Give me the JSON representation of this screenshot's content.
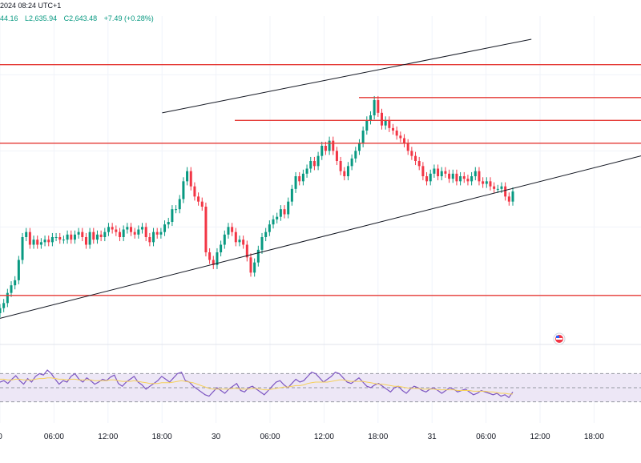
{
  "header": {
    "date_fragment": "2024 08:24 UTC+1",
    "ohlc_fragment": "44.16",
    "low_label": "L2,635.94",
    "close_label": "C2,643.48",
    "change_label": "+7.49 (+0.28%)"
  },
  "colors": {
    "up": "#089981",
    "down": "#f23645",
    "level_line": "#e53935",
    "trend_line": "#131722",
    "rsi_line": "#7e57c2",
    "rsi_ma": "#f5d05b",
    "rsi_band": "#ede7f6"
  },
  "icons": {
    "event_marker": "us-flag-icon"
  },
  "chart_data": [
    {
      "type": "candlestick",
      "title": "",
      "xlabel": "",
      "ylabel": "",
      "x_ticks": [
        "0",
        "06:00",
        "12:00",
        "18:00",
        "30",
        "06:00",
        "12:00",
        "18:00",
        "31",
        "06:00",
        "12:00",
        "18:00"
      ],
      "ylim": [
        0,
        100
      ],
      "grid": true,
      "candles_close": [
        8,
        10,
        14,
        17,
        19,
        27,
        36,
        38,
        33,
        35,
        33,
        34,
        35,
        34,
        36,
        36,
        35,
        35,
        37,
        35,
        37,
        38,
        36,
        33,
        38,
        35,
        37,
        36,
        38,
        40,
        39,
        38,
        36,
        39,
        40,
        38,
        37,
        39,
        40,
        36,
        34,
        38,
        37,
        38,
        41,
        42,
        47,
        47,
        51,
        58,
        62,
        56,
        52,
        50,
        48,
        30,
        27,
        25,
        30,
        33,
        37,
        40,
        38,
        34,
        35,
        33,
        28,
        22,
        26,
        31,
        36,
        38,
        41,
        43,
        44,
        47,
        45,
        50,
        55,
        60,
        58,
        61,
        63,
        66,
        64,
        68,
        72,
        70,
        74,
        70,
        66,
        62,
        60,
        64,
        67,
        70,
        73,
        78,
        82,
        84,
        90,
        85,
        80,
        82,
        79,
        78,
        76,
        75,
        73,
        70,
        68,
        66,
        64,
        60,
        58,
        61,
        63,
        60,
        62,
        61,
        59,
        61,
        58,
        60,
        59,
        58,
        60,
        62,
        58,
        57,
        58,
        56,
        55,
        55,
        56,
        52,
        50,
        54
      ],
      "levels": [
        73,
        82,
        91,
        104
      ],
      "channel": {
        "upper": [
          [
            0.253,
            85
          ],
          [
            0.829,
            114
          ]
        ],
        "lower": [
          [
            0.0,
            4
          ],
          [
            1.0,
            68
          ]
        ]
      }
    },
    {
      "type": "line",
      "title": "",
      "xlabel": "",
      "ylabel": "",
      "ylim": [
        0,
        100
      ],
      "bands": [
        30,
        50,
        70
      ],
      "series": [
        {
          "values": [
            58,
            60,
            56,
            62,
            67,
            60,
            55,
            63,
            58,
            66,
            70,
            68,
            75,
            70,
            62,
            55,
            60,
            58,
            66,
            70,
            62,
            58,
            64,
            60,
            55,
            58,
            62,
            60,
            65,
            68,
            56,
            52,
            58,
            62,
            66,
            58,
            54,
            48,
            52,
            56,
            60,
            66,
            62,
            58,
            64,
            70,
            72,
            60,
            58,
            52,
            48,
            44,
            40,
            38,
            44,
            50,
            46,
            42,
            48,
            52,
            56,
            46,
            44,
            50,
            52,
            48,
            44,
            40,
            46,
            52,
            58,
            60,
            54,
            50,
            56,
            62,
            58,
            60,
            66,
            72,
            70,
            64,
            58,
            62,
            66,
            72,
            70,
            64,
            58,
            56,
            60,
            64,
            58,
            52,
            50,
            54,
            56,
            52,
            48,
            44,
            50,
            52,
            46,
            42,
            48,
            52,
            50,
            46,
            44,
            48,
            50,
            46,
            42,
            46,
            50,
            48,
            44,
            46,
            48,
            44,
            40,
            42,
            46,
            44,
            42,
            40,
            42,
            38,
            40,
            36,
            44
          ]
        },
        {
          "values": [
            62,
            62,
            61,
            61,
            62,
            62,
            61,
            61,
            61,
            62,
            63,
            63,
            64,
            64,
            63,
            62,
            62,
            61,
            62,
            62,
            61,
            61,
            61,
            61,
            60,
            60,
            60,
            60,
            61,
            61,
            60,
            59,
            59,
            59,
            60,
            59,
            58,
            57,
            56,
            56,
            56,
            57,
            57,
            57,
            58,
            59,
            60,
            59,
            58,
            57,
            55,
            53,
            51,
            49,
            48,
            48,
            48,
            48,
            48,
            49,
            49,
            48,
            48,
            48,
            49,
            49,
            48,
            47,
            47,
            48,
            49,
            50,
            51,
            51,
            52,
            53,
            53,
            54,
            56,
            57,
            58,
            58,
            58,
            58,
            59,
            60,
            61,
            61,
            60,
            59,
            59,
            59,
            59,
            58,
            57,
            56,
            55,
            55,
            54,
            53,
            52,
            52,
            51,
            50,
            49,
            49,
            49,
            48,
            48,
            48,
            48,
            47,
            47,
            47,
            47,
            47,
            46,
            46,
            46,
            46,
            45,
            45,
            45,
            45,
            44,
            44,
            43,
            42,
            42,
            41,
            41
          ]
        }
      ]
    }
  ]
}
